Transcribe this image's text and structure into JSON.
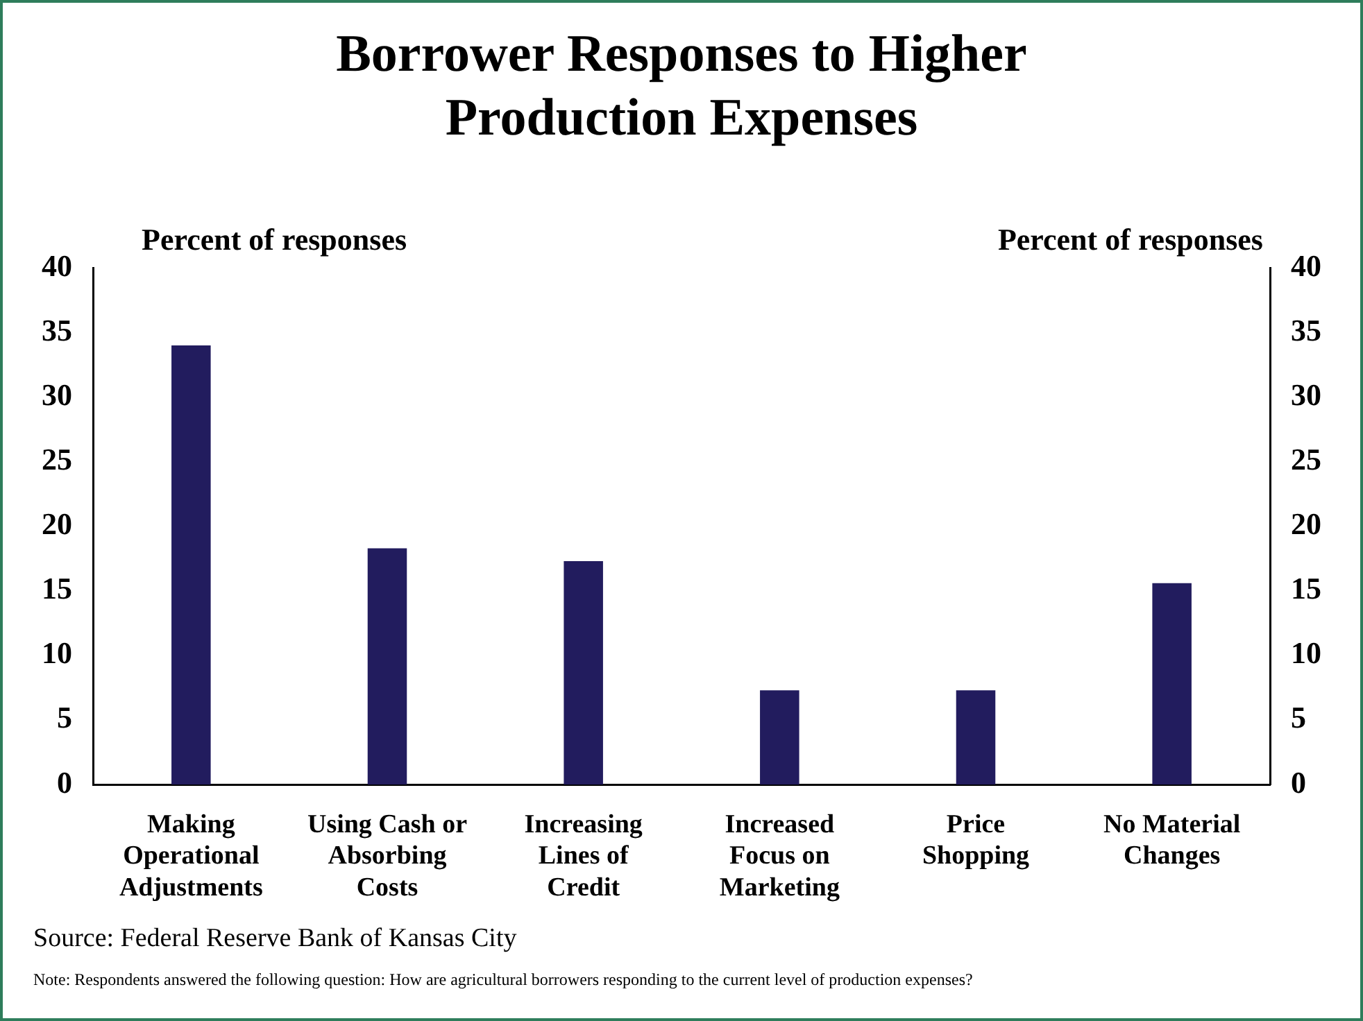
{
  "chart_data": {
    "type": "bar",
    "title": "Borrower Responses to Higher\nProduction Expenses",
    "ylabel": "Percent of responses",
    "y2label": "Percent of responses",
    "categories": [
      "Making\nOperational\nAdjustments",
      "Using Cash or\nAbsorbing\nCosts",
      "Increasing\nLines of\nCredit",
      "Increased\nFocus on\nMarketing",
      "Price\nShopping",
      "No Material\nChanges"
    ],
    "values": [
      34,
      18.3,
      17.3,
      7.3,
      7.3,
      15.6
    ],
    "color": "#221c5e",
    "ylim": [
      0,
      40
    ],
    "yticks": [
      0,
      5,
      10,
      15,
      20,
      25,
      30,
      35,
      40
    ],
    "y2lim": [
      0,
      40
    ],
    "y2ticks": [
      0,
      5,
      10,
      15,
      20,
      25,
      30,
      35,
      40
    ],
    "grid": false,
    "legend": false,
    "annotations": [
      "Source: Federal Reserve Bank of Kansas City",
      "Note: Respondents answered the following question: How are agricultural borrowers responding to the current level of production expenses?"
    ]
  }
}
